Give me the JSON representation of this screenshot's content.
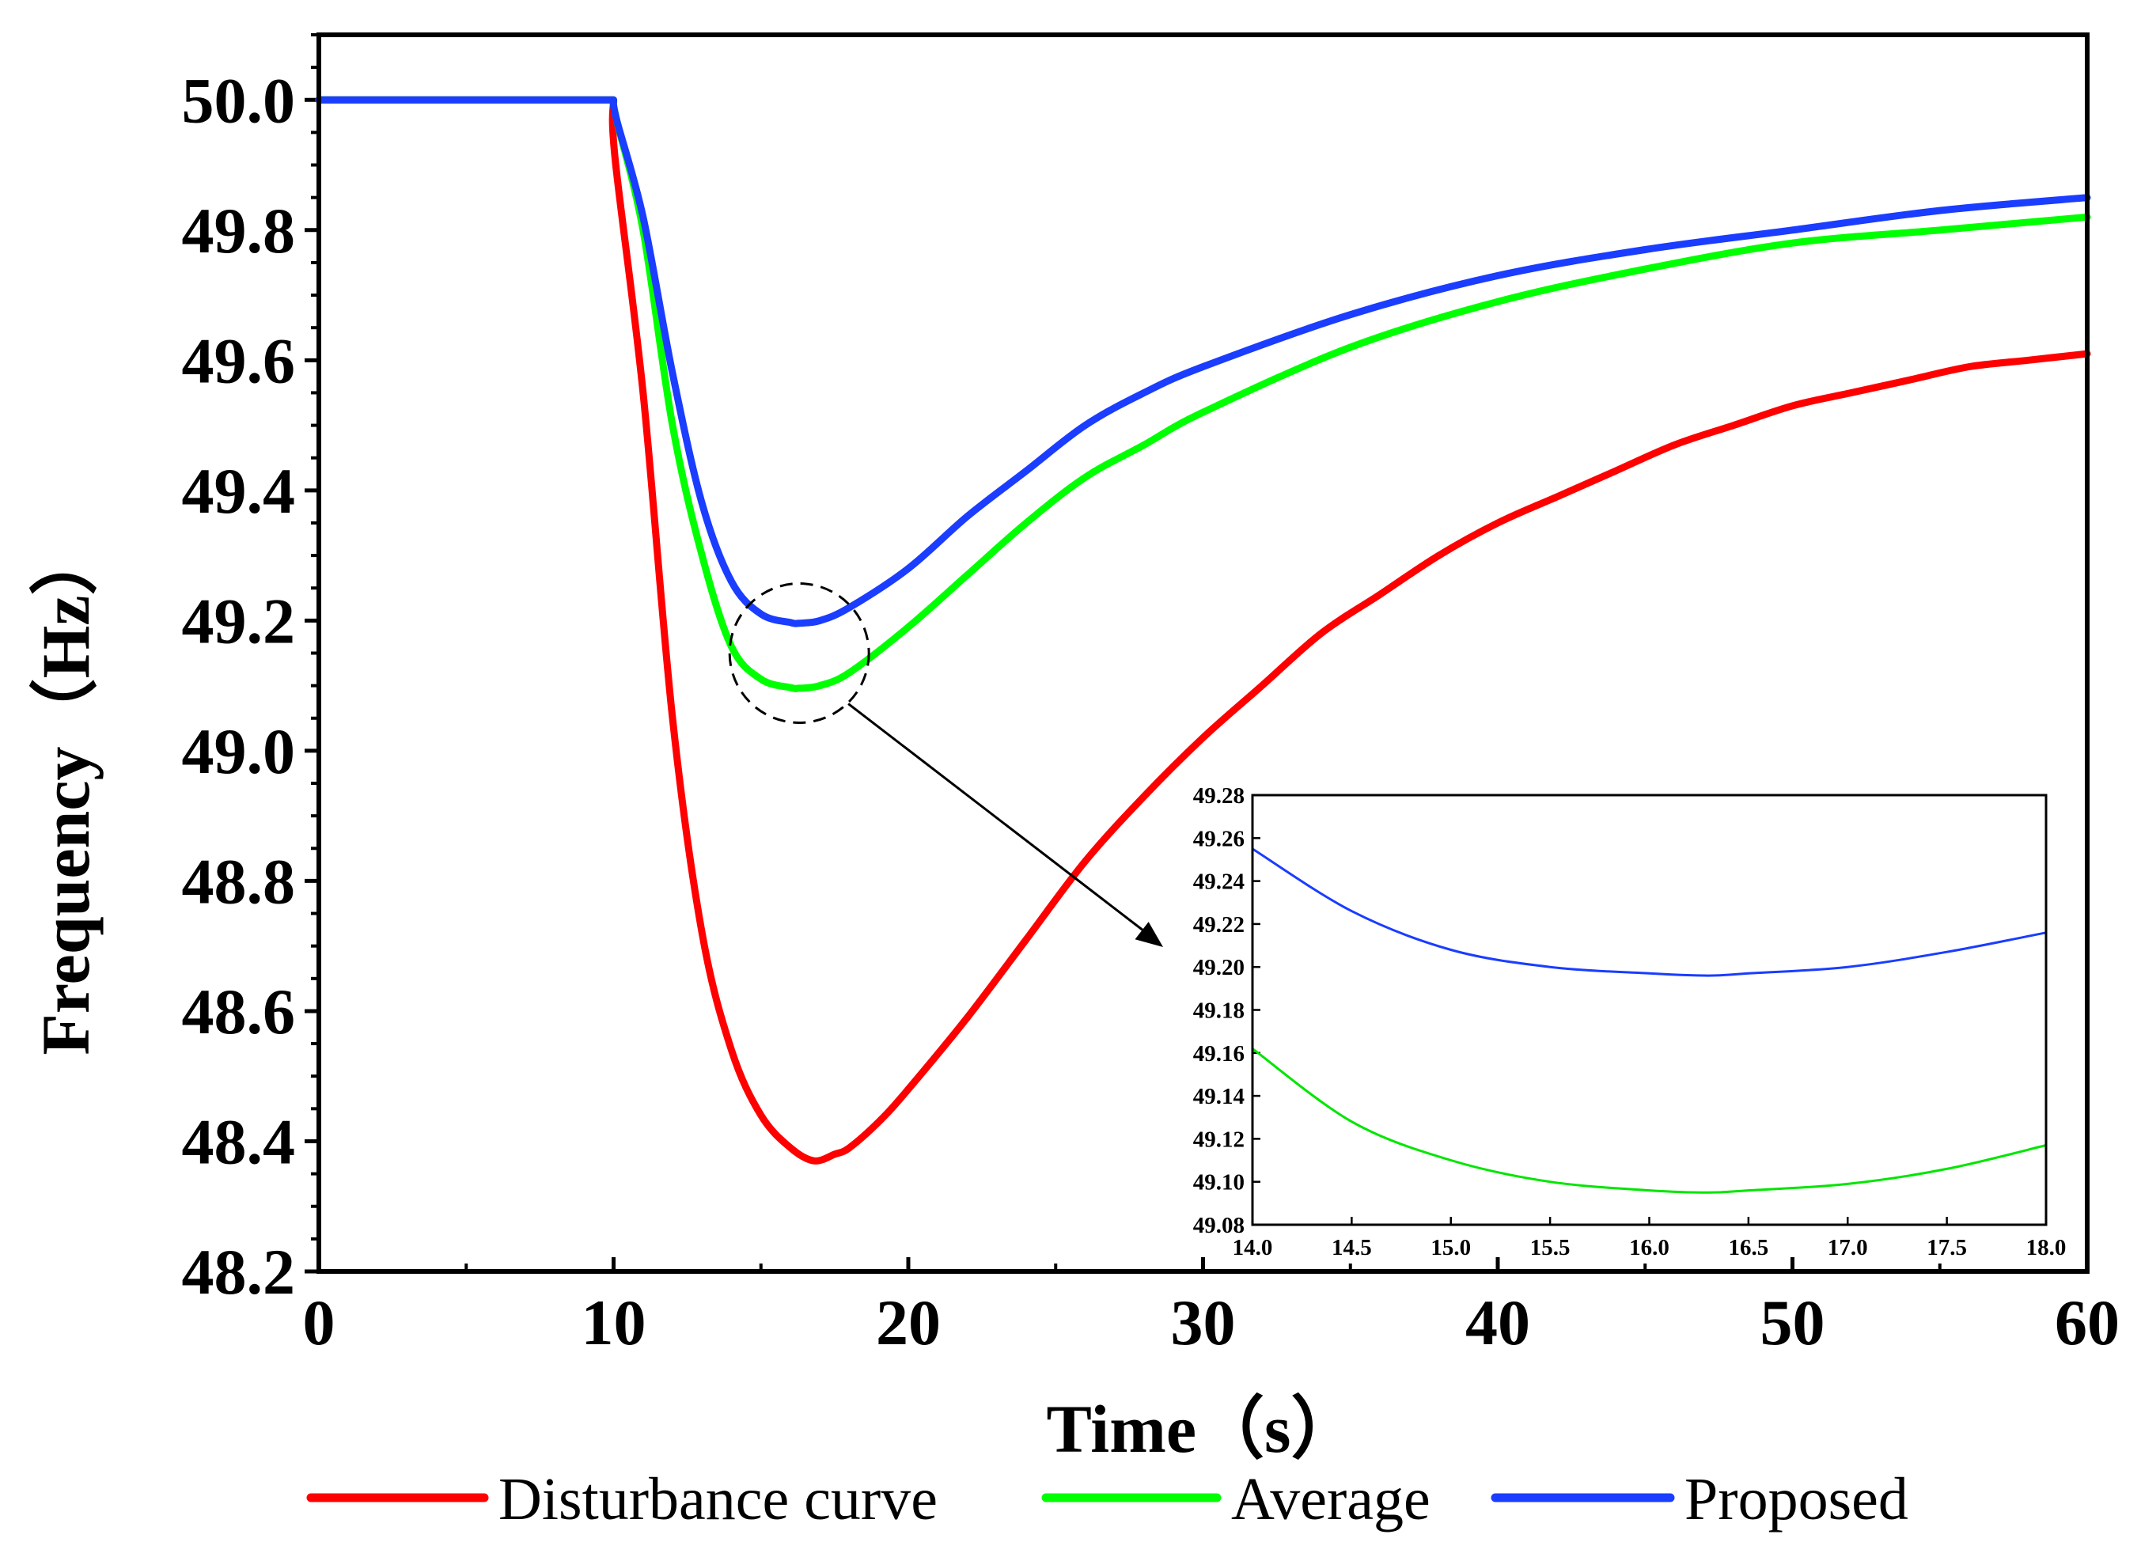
{
  "chart_data": {
    "type": "line",
    "xlabel": "Time（s）",
    "ylabel": "Frequency（Hz）",
    "xlim": [
      0,
      60
    ],
    "ylim": [
      48.2,
      50.1
    ],
    "x_ticks": [
      0,
      10,
      20,
      30,
      40,
      50,
      60
    ],
    "x_tick_labels": [
      "0",
      "10",
      "20",
      "30",
      "40",
      "50",
      "60"
    ],
    "y_ticks": [
      48.2,
      48.4,
      48.6,
      48.8,
      49.0,
      49.2,
      49.4,
      49.6,
      49.8,
      50.0
    ],
    "y_tick_labels": [
      "48.2",
      "48.4",
      "48.6",
      "48.8",
      "49.0",
      "49.2",
      "49.4",
      "49.6",
      "49.8",
      "50.0"
    ],
    "grid": false,
    "legend_position": "bottom",
    "series": [
      {
        "name": "Disturbance curve",
        "color": "#ff0000",
        "x": [
          0,
          10,
          10.05,
          11,
          12,
          13,
          14,
          15,
          16,
          16.8,
          17.5,
          18,
          19,
          20,
          22,
          24,
          26,
          28,
          30,
          32,
          34,
          36,
          38,
          40,
          42,
          44,
          46,
          48,
          50,
          52,
          54,
          56,
          58,
          60
        ],
        "y": [
          50.0,
          50.0,
          49.91,
          49.55,
          49.05,
          48.72,
          48.54,
          48.44,
          48.39,
          48.37,
          48.38,
          48.39,
          48.43,
          48.48,
          48.59,
          48.71,
          48.83,
          48.93,
          49.02,
          49.1,
          49.18,
          49.24,
          49.3,
          49.35,
          49.39,
          49.43,
          49.47,
          49.5,
          49.53,
          49.55,
          49.57,
          49.59,
          49.6,
          49.61
        ]
      },
      {
        "name": "Average",
        "color": "#00ff00",
        "x": [
          0,
          10,
          10.1,
          11,
          12,
          13,
          14,
          15,
          16,
          16.3,
          17,
          18,
          20,
          22,
          24,
          26,
          28,
          30,
          35,
          40,
          45,
          50,
          55,
          60
        ],
        "y": [
          50.0,
          50.0,
          49.97,
          49.8,
          49.5,
          49.3,
          49.16,
          49.11,
          49.097,
          49.096,
          49.1,
          49.12,
          49.19,
          49.27,
          49.35,
          49.42,
          49.47,
          49.52,
          49.62,
          49.69,
          49.74,
          49.78,
          49.8,
          49.82
        ]
      },
      {
        "name": "Proposed",
        "color": "#1a3dff",
        "x": [
          0,
          10,
          10.1,
          11,
          12,
          13,
          14,
          15,
          16,
          16.3,
          17,
          18,
          20,
          22,
          24,
          26,
          28,
          30,
          35,
          40,
          45,
          50,
          55,
          60
        ],
        "y": [
          50.0,
          50.0,
          49.97,
          49.82,
          49.58,
          49.38,
          49.26,
          49.21,
          49.197,
          49.196,
          49.2,
          49.22,
          49.28,
          49.36,
          49.43,
          49.5,
          49.55,
          49.59,
          49.67,
          49.73,
          49.77,
          49.8,
          49.83,
          49.85
        ]
      }
    ],
    "annotation": {
      "type": "zoom-circle-arrow",
      "center": {
        "x": 16.3,
        "y": 49.15
      }
    },
    "inset": {
      "type": "line",
      "xlim": [
        14.0,
        18.0
      ],
      "ylim": [
        49.08,
        49.28
      ],
      "x_tick_labels": [
        "14.0",
        "14.5",
        "15.0",
        "15.5",
        "16.0",
        "16.5",
        "17.0",
        "17.5",
        "18.0"
      ],
      "y_tick_labels": [
        "49.08",
        "49.10",
        "49.12",
        "49.14",
        "49.16",
        "49.18",
        "49.20",
        "49.22",
        "49.24",
        "49.26",
        "49.28"
      ],
      "series": [
        {
          "name": "Proposed",
          "color": "#1a3dff",
          "x": [
            14.0,
            14.5,
            15.0,
            15.5,
            16.0,
            16.3,
            16.5,
            17.0,
            17.5,
            18.0
          ],
          "y": [
            49.255,
            49.226,
            49.208,
            49.2,
            49.197,
            49.196,
            49.197,
            49.2,
            49.207,
            49.216
          ]
        },
        {
          "name": "Average",
          "color": "#00e600",
          "x": [
            14.0,
            14.5,
            15.0,
            15.5,
            16.0,
            16.3,
            16.5,
            17.0,
            17.5,
            18.0
          ],
          "y": [
            49.162,
            49.128,
            49.11,
            49.1,
            49.096,
            49.095,
            49.096,
            49.099,
            49.106,
            49.117
          ]
        }
      ]
    }
  }
}
